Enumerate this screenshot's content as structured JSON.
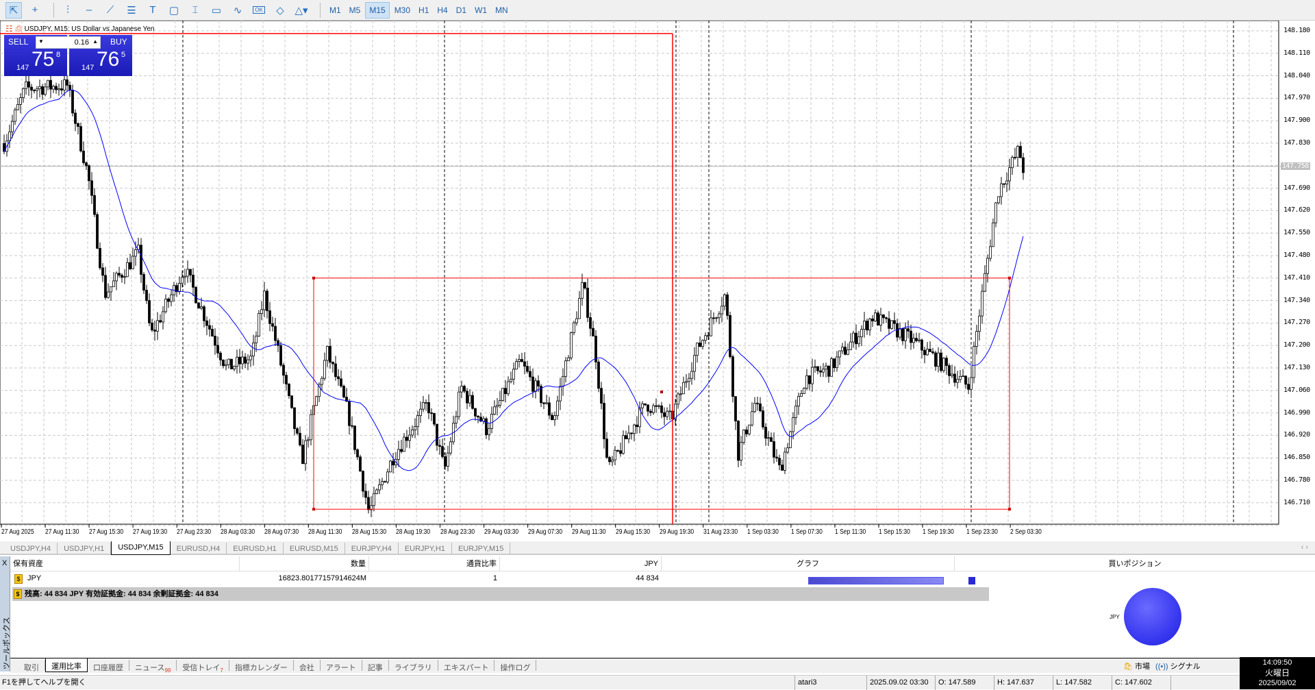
{
  "toolbar": {
    "tools": [
      {
        "icon": "cursor-icon",
        "glyph": "⇱"
      },
      {
        "icon": "crosshair-icon",
        "glyph": "+"
      },
      {
        "icon": "vertical-line-icon",
        "glyph": "⫶"
      },
      {
        "icon": "horizontal-line-icon",
        "glyph": "–"
      },
      {
        "icon": "trendline-icon",
        "glyph": "⟋"
      },
      {
        "icon": "fibonacci-icon",
        "glyph": "☰"
      },
      {
        "icon": "text-icon",
        "glyph": "T"
      },
      {
        "icon": "rectangle-icon",
        "glyph": "▢"
      },
      {
        "icon": "text-label-icon",
        "glyph": "⌶"
      },
      {
        "icon": "price-label-icon",
        "glyph": "▭"
      },
      {
        "icon": "indicator-icon",
        "glyph": "∿"
      },
      {
        "icon": "button-object-icon",
        "glyph": "OK"
      },
      {
        "icon": "ellipse-icon",
        "glyph": "◇"
      },
      {
        "icon": "shapes-icon",
        "glyph": "△▾"
      }
    ],
    "timeframes": [
      "M1",
      "M5",
      "M15",
      "M30",
      "H1",
      "H4",
      "D1",
      "W1",
      "MN"
    ],
    "active_timeframe": "M15"
  },
  "chart": {
    "title": "USDJPY, M15:  US Dollar vs Japanese Yen",
    "trade_panel": {
      "sell_label": "SELL",
      "buy_label": "BUY",
      "lot": "0.16",
      "sell_prefix": "147",
      "sell_big": "75",
      "sell_sup": "8",
      "buy_prefix": "147",
      "buy_big": "76",
      "buy_sup": "5"
    },
    "price_labels": [
      "148.180",
      "148.110",
      "148.040",
      "147.970",
      "147.900",
      "147.830",
      "147.690",
      "147.620",
      "147.550",
      "147.480",
      "147.410",
      "147.340",
      "147.270",
      "147.200",
      "147.130",
      "147.060",
      "146.990",
      "146.920",
      "146.850",
      "146.780",
      "146.710"
    ],
    "current_price": "147.758",
    "time_labels": [
      "27 Aug 2025",
      "27 Aug 11:30",
      "27 Aug 15:30",
      "27 Aug 19:30",
      "27 Aug 23:30",
      "28 Aug 03:30",
      "28 Aug 07:30",
      "28 Aug 11:30",
      "28 Aug 15:30",
      "28 Aug 19:30",
      "28 Aug 23:30",
      "29 Aug 03:30",
      "29 Aug 07:30",
      "29 Aug 11:30",
      "29 Aug 15:30",
      "29 Aug 19:30",
      "31 Aug 23:30",
      "1 Sep 03:30",
      "1 Sep 07:30",
      "1 Sep 11:30",
      "1 Sep 15:30",
      "1 Sep 19:30",
      "1 Sep 23:30",
      "2 Sep 03:30"
    ],
    "rectangle": {
      "top_price": 147.41,
      "bottom_price": 146.69,
      "color": "#ff0000"
    },
    "ma_color": "#0000ff"
  },
  "symbol_tabs": [
    "USDJPY,H4",
    "USDJPY,H1",
    "USDJPY,M15",
    "EURUSD,H4",
    "EURUSD,H1",
    "EURUSD,M15",
    "EURJPY,H4",
    "EURJPY,H1",
    "EURJPY,M15"
  ],
  "active_symbol_tab": "USDJPY,M15",
  "assets": {
    "close": "X",
    "headers": {
      "asset": "保有資産",
      "quantity": "数量",
      "ratio": "通貨比率",
      "jpy": "JPY",
      "graph": "グラフ",
      "buy_positions": "買いポジション"
    },
    "row": {
      "asset": "JPY",
      "quantity": "16823.80177157914624M",
      "ratio": "1",
      "jpy": "44 834",
      "graph_fill": 100
    },
    "summary": "残高: 44 834 JPY  有効証拠金: 44 834  余剰証拠金: 44 834",
    "pie_label": "JPY",
    "pie_color": "#3a3af0"
  },
  "toolbox_label": "ツールボックス",
  "bottom_tabs": [
    {
      "label": "取引"
    },
    {
      "label": "運用比率",
      "active": true
    },
    {
      "label": "口座履歴"
    },
    {
      "label": "ニュース",
      "badge": "99"
    },
    {
      "label": "受信トレイ",
      "badge": "7"
    },
    {
      "label": "指標カレンダー"
    },
    {
      "label": "会社"
    },
    {
      "label": "アラート"
    },
    {
      "label": "記事"
    },
    {
      "label": "ライブラリ"
    },
    {
      "label": "エキスパート"
    },
    {
      "label": "操作ログ"
    }
  ],
  "right_links": {
    "market": "市場",
    "signals": "シグナル"
  },
  "status": {
    "help": "F1を押してヘルプを開く",
    "profile": "atari3",
    "datetime": "2025.09.02 03:30",
    "open": "O: 147.589",
    "high": "H: 147.637",
    "low": "L: 147.582",
    "close": "C: 147.602"
  },
  "clock": {
    "time": "14:09:50",
    "weekday": "火曜日",
    "date": "2025/09/02"
  }
}
